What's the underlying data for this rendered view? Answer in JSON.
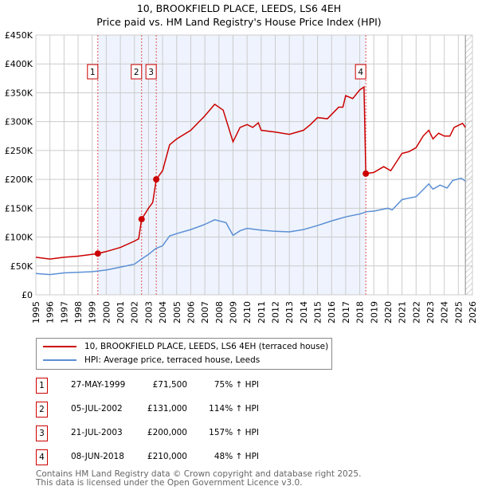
{
  "chart_data": {
    "type": "line",
    "title": "10, BROOKFIELD PLACE, LEEDS, LS6 4EH",
    "subtitle": "Price paid vs. HM Land Registry's House Price Index (HPI)",
    "xlim": [
      1995,
      2026
    ],
    "ylim": [
      0,
      450000
    ],
    "x_ticks": [
      "1995",
      "1996",
      "1997",
      "1998",
      "1999",
      "2000",
      "2001",
      "2002",
      "2003",
      "2004",
      "2005",
      "2006",
      "2007",
      "2008",
      "2009",
      "2010",
      "2011",
      "2012",
      "2013",
      "2014",
      "2015",
      "2016",
      "2017",
      "2018",
      "2019",
      "2020",
      "2021",
      "2022",
      "2023",
      "2024",
      "2025",
      "2026"
    ],
    "y_ticks": [
      {
        "v": 0,
        "label": "£0"
      },
      {
        "v": 50000,
        "label": "£50K"
      },
      {
        "v": 100000,
        "label": "£100K"
      },
      {
        "v": 150000,
        "label": "£150K"
      },
      {
        "v": 200000,
        "label": "£200K"
      },
      {
        "v": 250000,
        "label": "£250K"
      },
      {
        "v": 300000,
        "label": "£300K"
      },
      {
        "v": 350000,
        "label": "£350K"
      },
      {
        "v": 400000,
        "label": "£400K"
      },
      {
        "v": 450000,
        "label": "£450K"
      }
    ],
    "grid": true,
    "shaded_range": [
      1999.4,
      2018.43
    ],
    "forecast_hatch_from": 2025.5,
    "series": [
      {
        "name": "10, BROOKFIELD PLACE, LEEDS, LS6 4EH (terraced house)",
        "color": "#cc0000",
        "x": [
          1995,
          1996,
          1997,
          1998,
          1999.4,
          2000,
          2001,
          2002,
          2002.3,
          2002.51,
          2003,
          2003.3,
          2003.55,
          2004,
          2004.5,
          2005,
          2006,
          2007,
          2007.7,
          2008.3,
          2009,
          2009.5,
          2010,
          2010.4,
          2010.8,
          2011,
          2012,
          2013,
          2014,
          2014.5,
          2015,
          2015.7,
          2016.5,
          2016.8,
          2017,
          2017.5,
          2018,
          2018.3,
          2018.43,
          2019,
          2019.7,
          2020.2,
          2020.6,
          2021,
          2021.5,
          2022,
          2022.5,
          2022.9,
          2023.2,
          2023.6,
          2024,
          2024.4,
          2024.7,
          2025.3,
          2025.5
        ],
        "y": [
          65000,
          62000,
          65000,
          67000,
          71500,
          75000,
          82000,
          93000,
          97000,
          131000,
          150000,
          160000,
          200000,
          215000,
          260000,
          270000,
          285000,
          310000,
          330000,
          320000,
          265000,
          290000,
          295000,
          290000,
          298000,
          285000,
          282000,
          278000,
          285000,
          295000,
          307000,
          305000,
          325000,
          325000,
          345000,
          340000,
          355000,
          360000,
          210000,
          212000,
          222000,
          215000,
          230000,
          245000,
          248000,
          255000,
          275000,
          285000,
          270000,
          280000,
          275000,
          275000,
          290000,
          297000,
          290000
        ]
      },
      {
        "name": "HPI: Average price, terraced house, Leeds",
        "color": "#5b8fd4",
        "x": [
          1995,
          1996,
          1997,
          1998,
          1999,
          2000,
          2001,
          2002,
          2002.5,
          2003,
          2003.5,
          2004,
          2004.5,
          2005,
          2006,
          2007,
          2007.7,
          2008.5,
          2009,
          2009.5,
          2010,
          2011,
          2012,
          2013,
          2014,
          2015,
          2016,
          2017,
          2018,
          2018.5,
          2019,
          2020,
          2020.3,
          2021,
          2022,
          2022.9,
          2023.2,
          2023.7,
          2024.2,
          2024.6,
          2025.2,
          2025.5
        ],
        "y": [
          37000,
          35000,
          38000,
          39000,
          40000,
          43000,
          48000,
          53000,
          62000,
          70000,
          80000,
          85000,
          102000,
          106000,
          113000,
          122000,
          130000,
          125000,
          103000,
          111000,
          115000,
          112000,
          110000,
          109000,
          113000,
          120000,
          128000,
          135000,
          140000,
          144000,
          145000,
          150000,
          147000,
          165000,
          170000,
          192000,
          183000,
          190000,
          185000,
          198000,
          202000,
          197000
        ]
      }
    ],
    "sales": [
      {
        "id": "1",
        "x": 1999.4,
        "y": 71500,
        "date": "27-MAY-1999",
        "price": "£71,500",
        "hpi": "75% ↑ HPI"
      },
      {
        "id": "2",
        "x": 2002.51,
        "y": 131000,
        "date": "05-JUL-2002",
        "price": "£131,000",
        "hpi": "114% ↑ HPI"
      },
      {
        "id": "3",
        "x": 2003.55,
        "y": 200000,
        "date": "21-JUL-2003",
        "price": "£200,000",
        "hpi": "157% ↑ HPI"
      },
      {
        "id": "4",
        "x": 2018.43,
        "y": 210000,
        "date": "08-JUN-2018",
        "price": "£210,000",
        "hpi": "48% ↑ HPI"
      }
    ]
  },
  "legend": {
    "red": "10, BROOKFIELD PLACE, LEEDS, LS6 4EH (terraced house)",
    "blue": "HPI: Average price, terraced house, Leeds"
  },
  "footer": {
    "line1": "Contains HM Land Registry data © Crown copyright and database right 2025.",
    "line2": "This data is licensed under the Open Government Licence v3.0."
  }
}
